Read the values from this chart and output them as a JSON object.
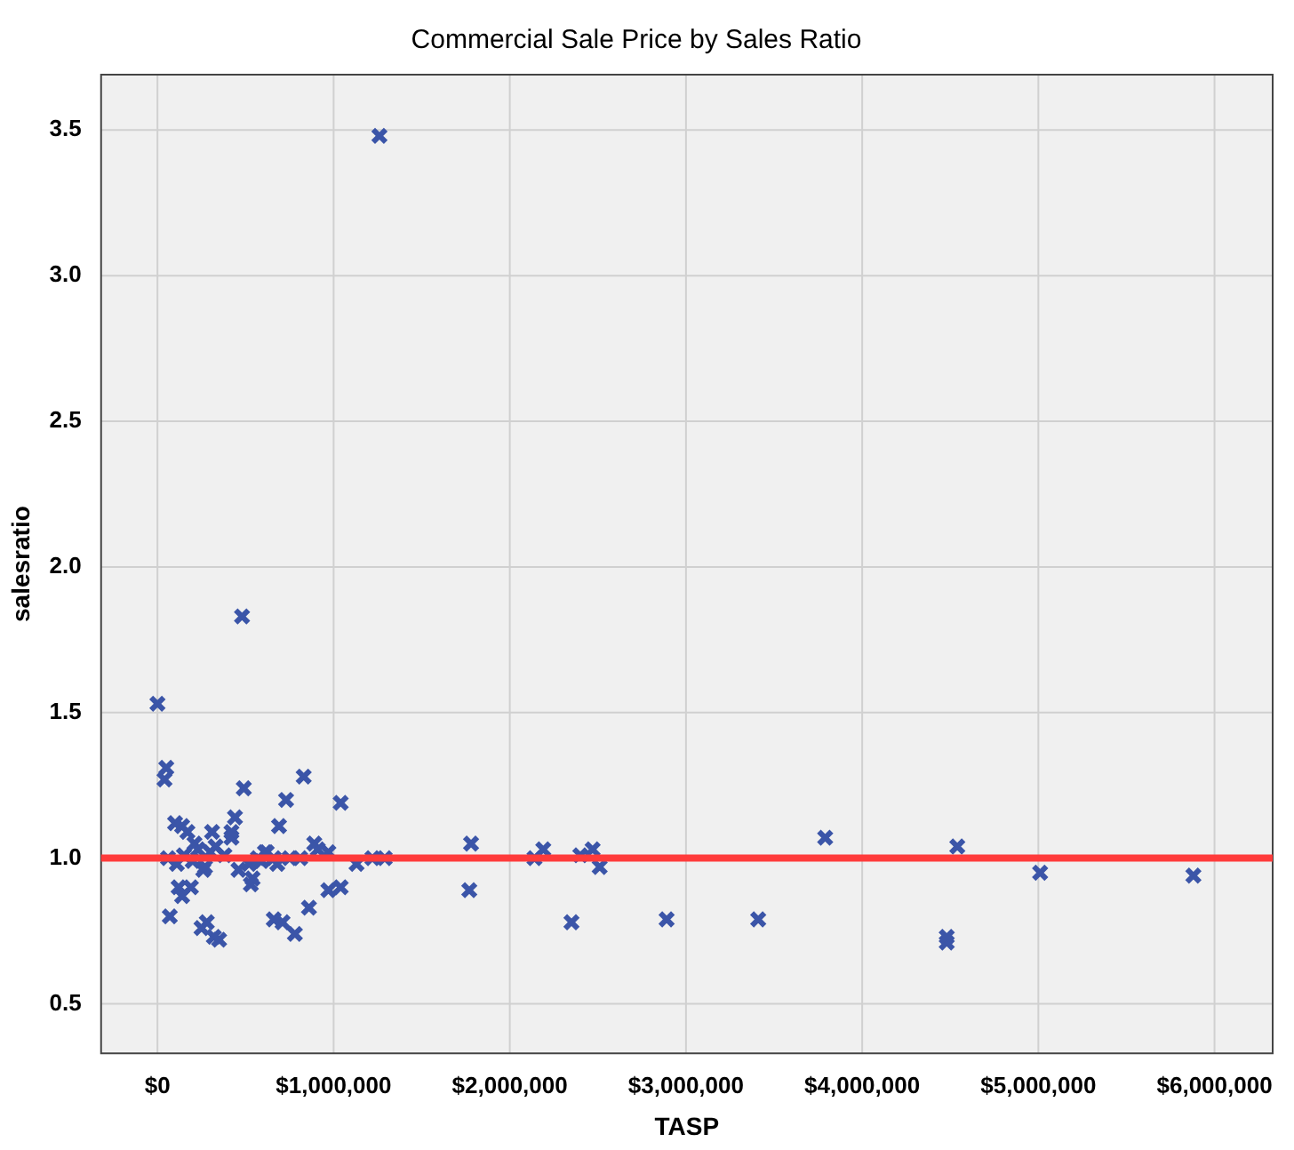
{
  "chart_data": {
    "type": "scatter",
    "title": "Commercial Sale Price by Sales Ratio",
    "xlabel": "TASP",
    "ylabel": "salesratio",
    "series": [
      {
        "color": "#3b55a8",
        "x": [
          1260000,
          480000,
          0,
          50000,
          40000,
          490000,
          830000,
          1040000,
          730000,
          690000,
          100000,
          140000,
          170000,
          310000,
          420000,
          420000,
          440000,
          300000,
          210000,
          610000,
          520000,
          260000,
          60000,
          110000,
          70000,
          120000,
          190000,
          140000,
          280000,
          250000,
          320000,
          350000,
          530000,
          540000,
          660000,
          710000,
          780000,
          860000,
          970000,
          1040000,
          590000,
          660000,
          810000,
          890000,
          970000,
          910000,
          1130000,
          1220000,
          1290000,
          150000,
          200000,
          230000,
          270000,
          330000,
          380000,
          460000,
          570000,
          620000,
          680000,
          750000,
          1780000,
          1770000,
          2140000,
          2190000,
          2350000,
          2400000,
          2470000,
          2510000,
          2890000,
          3410000,
          3790000,
          4480000,
          4480000,
          4540000,
          5010000,
          5880000
        ],
        "values": [
          3.48,
          1.83,
          1.53,
          1.31,
          1.27,
          1.24,
          1.28,
          1.19,
          1.2,
          1.11,
          1.12,
          1.11,
          1.09,
          1.09,
          1.07,
          1.09,
          1.14,
          1.02,
          1.05,
          1.02,
          0.98,
          0.96,
          1.0,
          0.98,
          0.8,
          0.9,
          0.9,
          0.87,
          0.78,
          0.76,
          0.73,
          0.72,
          0.91,
          0.93,
          0.79,
          0.78,
          0.74,
          0.83,
          0.89,
          0.9,
          0.99,
          1.0,
          1.0,
          1.05,
          1.02,
          1.03,
          0.98,
          1.0,
          1.0,
          1.01,
          0.99,
          1.03,
          0.97,
          1.04,
          1.01,
          0.96,
          1.0,
          1.02,
          0.98,
          1.0,
          1.05,
          0.89,
          1.0,
          1.03,
          0.78,
          1.01,
          1.03,
          0.97,
          0.79,
          0.79,
          1.07,
          0.71,
          0.73,
          1.04,
          0.95,
          0.94
        ]
      }
    ],
    "ref_lines": [
      {
        "axis": "y",
        "value": 1.0,
        "color": "#ff3b3b"
      }
    ],
    "marker": "cross",
    "grid": true,
    "legend": false,
    "xlim": [
      -320000,
      6330000
    ],
    "ylim": [
      0.33,
      3.69
    ],
    "xticks": [
      {
        "value": 0,
        "label": "$0"
      },
      {
        "value": 1000000,
        "label": "$1,000,000"
      },
      {
        "value": 2000000,
        "label": "$2,000,000"
      },
      {
        "value": 3000000,
        "label": "$3,000,000"
      },
      {
        "value": 4000000,
        "label": "$4,000,000"
      },
      {
        "value": 5000000,
        "label": "$5,000,000"
      },
      {
        "value": 6000000,
        "label": "$6,000,000"
      }
    ],
    "yticks": [
      {
        "value": 0.5,
        "label": "0.5"
      },
      {
        "value": 1.0,
        "label": "1.0"
      },
      {
        "value": 1.5,
        "label": "1.5"
      },
      {
        "value": 2.0,
        "label": "2.0"
      },
      {
        "value": 2.5,
        "label": "2.5"
      },
      {
        "value": 3.0,
        "label": "3.0"
      },
      {
        "value": 3.5,
        "label": "3.5"
      }
    ]
  }
}
